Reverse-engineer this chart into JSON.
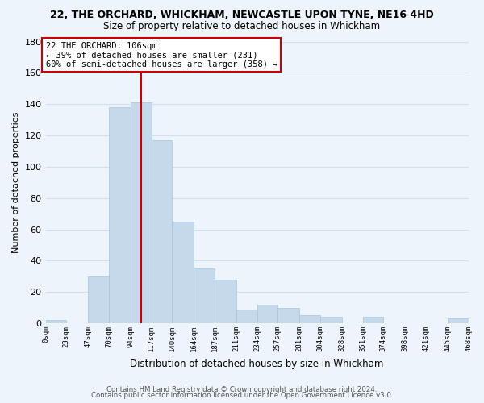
{
  "title": "22, THE ORCHARD, WHICKHAM, NEWCASTLE UPON TYNE, NE16 4HD",
  "subtitle": "Size of property relative to detached houses in Whickham",
  "xlabel": "Distribution of detached houses by size in Whickham",
  "ylabel": "Number of detached properties",
  "bar_color": "#c5d9ea",
  "bar_edge_color": "#a8c4dc",
  "grid_color": "#d0e0ee",
  "bin_edges": [
    0,
    23,
    47,
    70,
    94,
    117,
    140,
    164,
    187,
    211,
    234,
    257,
    281,
    304,
    328,
    351,
    374,
    398,
    421,
    445,
    468
  ],
  "bin_labels": [
    "0sqm",
    "23sqm",
    "47sqm",
    "70sqm",
    "94sqm",
    "117sqm",
    "140sqm",
    "164sqm",
    "187sqm",
    "211sqm",
    "234sqm",
    "257sqm",
    "281sqm",
    "304sqm",
    "328sqm",
    "351sqm",
    "374sqm",
    "398sqm",
    "421sqm",
    "445sqm",
    "468sqm"
  ],
  "counts": [
    2,
    0,
    30,
    138,
    141,
    117,
    65,
    35,
    28,
    9,
    12,
    10,
    5,
    4,
    0,
    4,
    0,
    0,
    0,
    3
  ],
  "vline_x": 106,
  "vline_color": "#cc0000",
  "annotation_line1": "22 THE ORCHARD: 106sqm",
  "annotation_line2": "← 39% of detached houses are smaller (231)",
  "annotation_line3": "60% of semi-detached houses are larger (358) →",
  "annotation_box_color": "#ffffff",
  "annotation_box_edge_color": "#cc0000",
  "ylim": [
    0,
    180
  ],
  "yticks": [
    0,
    20,
    40,
    60,
    80,
    100,
    120,
    140,
    160,
    180
  ],
  "footer1": "Contains HM Land Registry data © Crown copyright and database right 2024.",
  "footer2": "Contains public sector information licensed under the Open Government Licence v3.0.",
  "background_color": "#edf4fb",
  "plot_bg_color": "#edf4fb"
}
